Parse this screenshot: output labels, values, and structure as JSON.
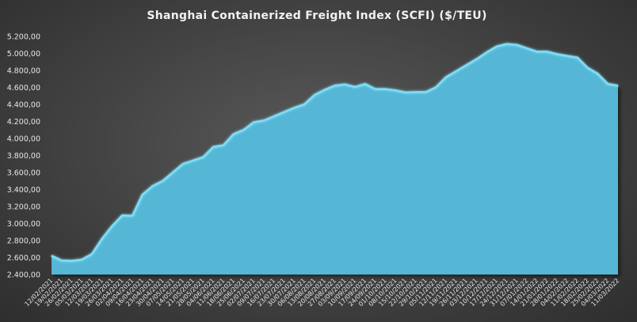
{
  "chart_data": {
    "type": "area",
    "title": "Shanghai Containerized Freight Index  (SCFI) ($/TEU)",
    "xlabel": "",
    "ylabel": "",
    "ylim": [
      2400,
      5200
    ],
    "y_ticks": [
      "2.400,00",
      "2.600,00",
      "2.800,00",
      "3.000,00",
      "3.200,00",
      "3.400,00",
      "3.600,00",
      "3.800,00",
      "4.000,00",
      "4.200,00",
      "4.400,00",
      "4.600,00",
      "4.800,00",
      "5.000,00",
      "5.200,00"
    ],
    "y_tick_values": [
      2400,
      2600,
      2800,
      3000,
      3200,
      3400,
      3600,
      3800,
      4000,
      4200,
      4400,
      4600,
      4800,
      5000,
      5200
    ],
    "grid": false,
    "colors": {
      "fill": "#55b6d6",
      "line": "#7fdcf5"
    },
    "categories": [
      "12/02/2021",
      "19/02/2021",
      "26/02/2021",
      "05/03/2021",
      "12/03/2021",
      "19/03/2021",
      "26/03/2021",
      "02/04/2021",
      "09/04/2021",
      "16/04/2021",
      "23/04/2021",
      "30/04/2021",
      "07/05/2021",
      "14/05/2021",
      "21/05/2021",
      "28/05/2021",
      "04/06/2021",
      "11/06/2021",
      "18/06/2021",
      "25/06/2021",
      "02/07/2021",
      "09/07/2021",
      "16/07/2021",
      "23/07/2021",
      "30/07/2021",
      "06/08/2021",
      "13/08/2021",
      "20/08/2021",
      "27/08/2021",
      "03/09/2021",
      "10/09/2021",
      "17/09/2021",
      "24/09/2021",
      "01/10/2021",
      "08/10/2021",
      "15/10/2021",
      "22/10/2021",
      "29/10/2021",
      "05/11/2021",
      "12/11/2021",
      "19/11/2021",
      "26/11/2021",
      "03/12/2021",
      "10/12/2021",
      "17/12/2021",
      "24/12/2021",
      "31/12/2021",
      "07/01/2022",
      "14/01/2022",
      "21/01/2022",
      "28/01/2022",
      "04/02/2022",
      "11/02/2022",
      "18/02/2022",
      "25/02/2022",
      "04/03/2022",
      "11/03/2022"
    ],
    "x_tick_labels": [
      "12/02/2021",
      "19/02/2021",
      "26/02/2021",
      "05/03/2021",
      "12/03/2021",
      "19/03/2021",
      "26/03/2021",
      "02/04/2021",
      "09/04/2021",
      "16/04/2021",
      "23/04/2021",
      "30/04/2021",
      "07/05/2021",
      "14/05/2021",
      "21/05/2021",
      "28/05/2021",
      "04/06/2021",
      "11/06/2021",
      "18/06/2021",
      "25/06/2021",
      "02/07/2021",
      "09/07/2021",
      "16/07/2021",
      "23/07/2021",
      "30/07/2021",
      "06/08/2021",
      "13/08/2021",
      "20/08/2021",
      "27/08/2021",
      "03/09/2021",
      "10/09/2021",
      "17/09/2021",
      "24/09/2021",
      "01/10/2021",
      "08/10/2021",
      "15/10/2021",
      "22/10/2021",
      "29/10/2021",
      "05/11/2021",
      "12/11/2021",
      "19/11/2021",
      "26/11/2021",
      "03/12/2021",
      "10/12/2021",
      "17/12/2021",
      "24/12/2021",
      "31/12/2021",
      "07/01/2022",
      "14/01/2022",
      "21/01/2022",
      "28/01/2022",
      "04/02/2022",
      "11/02/2022",
      "18/02/2022",
      "25/02/2022",
      "04/03/2022",
      "11/03/2022"
    ],
    "values": [
      2620,
      2565,
      2560,
      2575,
      2640,
      2820,
      2970,
      3095,
      3090,
      3340,
      3440,
      3500,
      3600,
      3700,
      3740,
      3780,
      3900,
      3920,
      4050,
      4100,
      4190,
      4210,
      4260,
      4310,
      4360,
      4400,
      4510,
      4570,
      4620,
      4635,
      4605,
      4640,
      4580,
      4580,
      4565,
      4540,
      4545,
      4545,
      4600,
      4720,
      4790,
      4860,
      4930,
      5010,
      5080,
      5110,
      5100,
      5060,
      5020,
      5020,
      4990,
      4970,
      4950,
      4830,
      4760,
      4640,
      4620
    ]
  }
}
